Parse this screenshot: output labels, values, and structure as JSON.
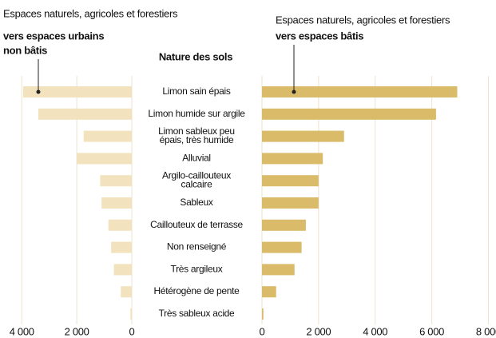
{
  "chart_data": [
    {
      "type": "bar",
      "orientation": "horizontal",
      "title": "Espaces naturels, agricoles et forestiers",
      "subtitle": [
        "vers espaces urbains",
        "non bâtis"
      ],
      "category_label": "Nature des sols",
      "categories": [
        "Limon sain épais",
        "Limon humide sur argile",
        "Limon sableux peu\népais, très humide",
        "Alluvial",
        "Argilo-caillouteux\ncalcaire",
        "Sableux",
        "Caillouteux de terrasse",
        "Non renseigné",
        "Très argileux",
        "Hétérogène de pente",
        "Très sableux acide"
      ],
      "values": [
        3950,
        3400,
        1750,
        2000,
        1150,
        1100,
        850,
        750,
        650,
        400,
        50
      ],
      "color": "#f2e2bd",
      "xlim": [
        4500,
        0
      ],
      "xticks": [
        {
          "value": 4000,
          "label": "4 000"
        },
        {
          "value": 2000,
          "label": "2 000"
        },
        0
      ],
      "grid": true
    },
    {
      "type": "bar",
      "orientation": "horizontal",
      "title": "Espaces naturels, agricoles et forestiers",
      "subtitle": [
        "vers espaces bâtis"
      ],
      "values": [
        6900,
        6150,
        2900,
        2150,
        2000,
        2000,
        1550,
        1400,
        1150,
        500,
        50
      ],
      "color": "#dabb6a",
      "xlim": [
        0,
        8100
      ],
      "xticks": [
        0,
        {
          "value": 2000,
          "label": "2 000"
        },
        {
          "value": 4000,
          "label": "4 000"
        },
        {
          "value": 6000,
          "label": "6 000"
        },
        {
          "value": 8000,
          "label": "8 000"
        }
      ],
      "grid": true
    }
  ]
}
